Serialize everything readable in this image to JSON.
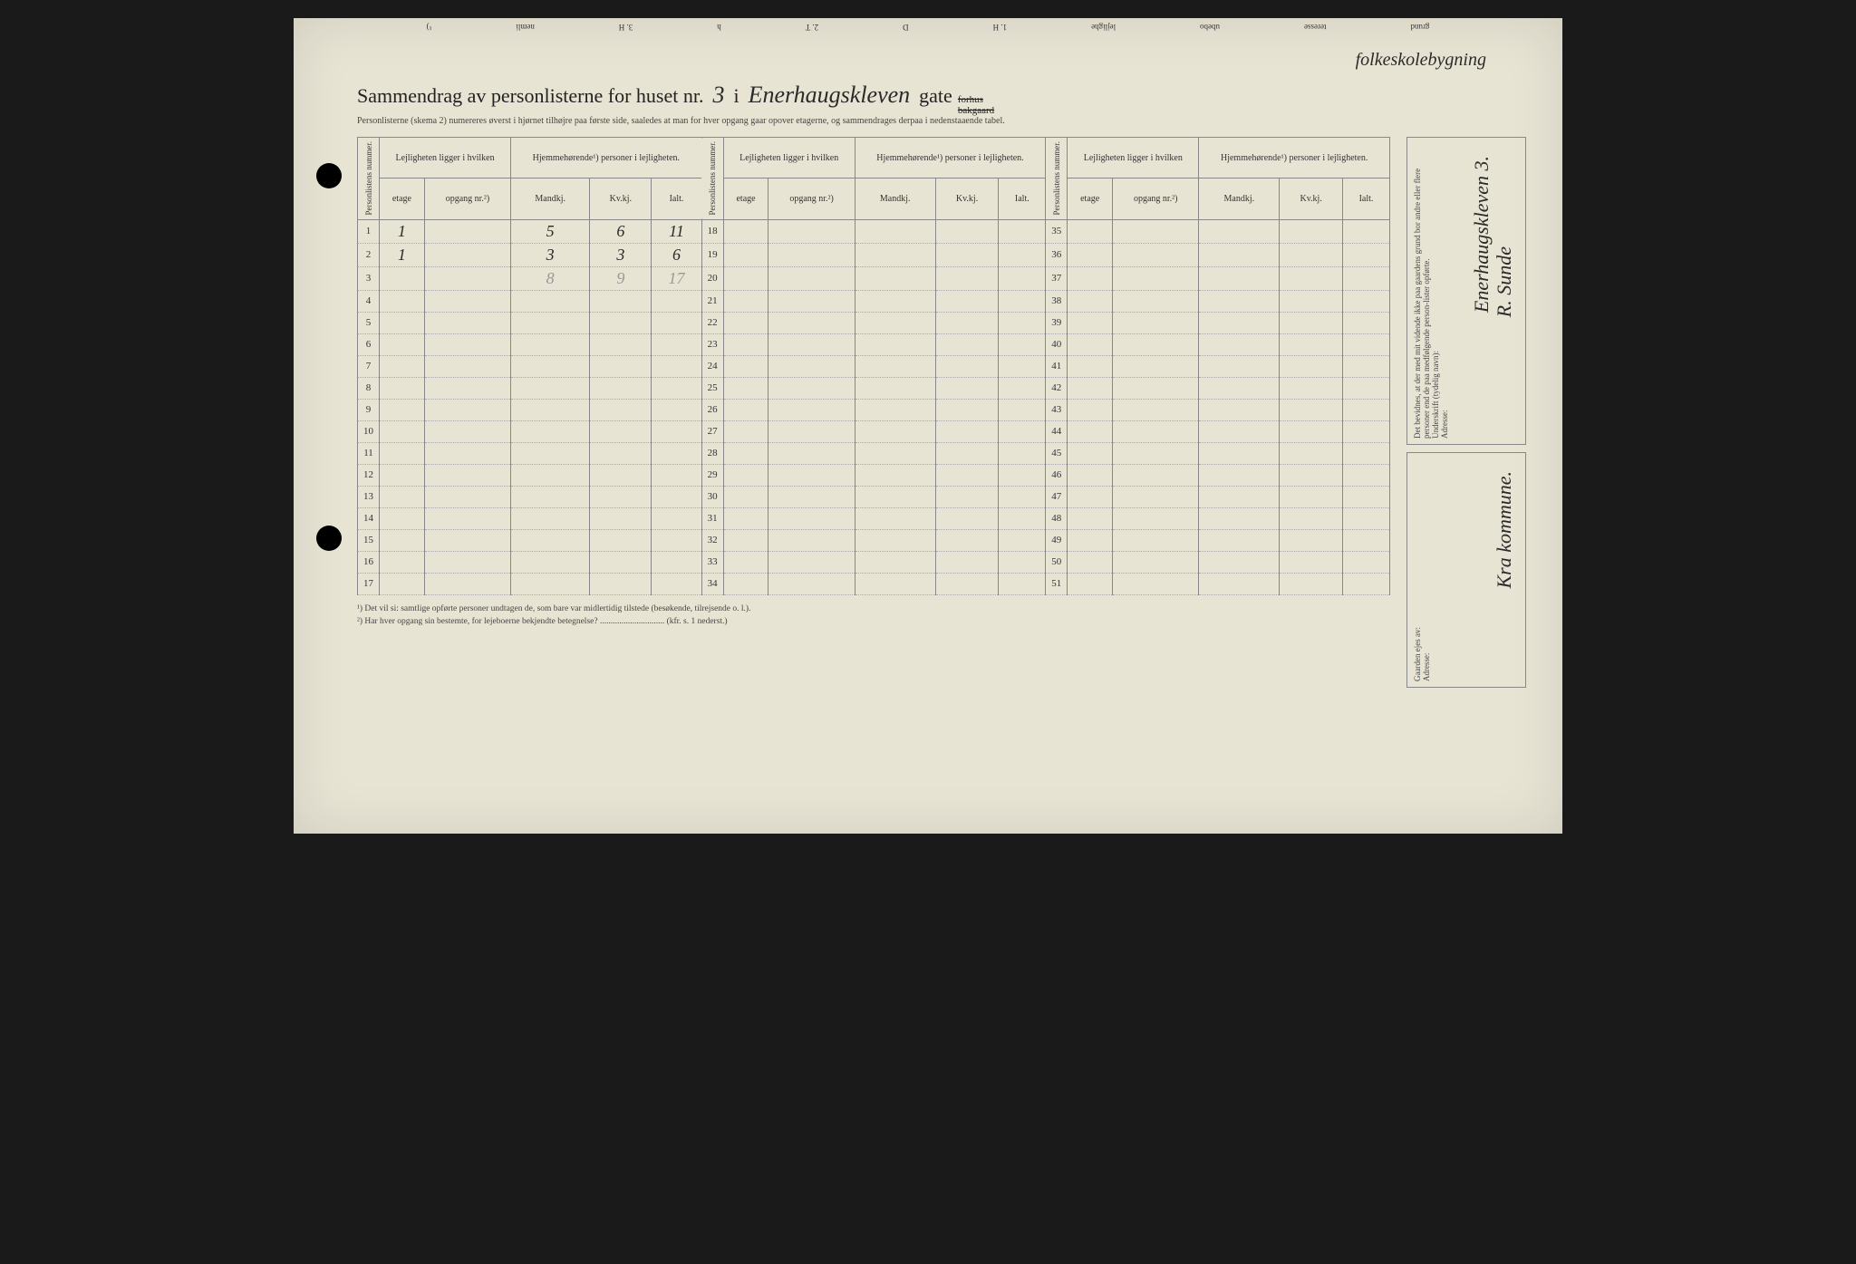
{
  "topFragments": [
    "grund",
    "teresse",
    "ubebo",
    "lejlighe",
    "1. H",
    "D",
    "2. T",
    "h",
    "3. H",
    "nemli",
    "¹)"
  ],
  "annotation": "folkeskolebygning",
  "title": {
    "part1": "Sammendrag av personlisterne for huset nr.",
    "houseNumber": "3",
    "part2": "i",
    "street": "Enerhaugskleven",
    "part3": "gate",
    "strike1": "forhus",
    "strike2": "bakgaard"
  },
  "subtitle": "Personlisterne (skema 2) numereres øverst i hjørnet tilhøjre paa første side, saaledes at man for hver opgang gaar opover etagerne, og sammendrages derpaa i nedenstaaende tabel.",
  "headers": {
    "personlist": "Personlistens nummer.",
    "ligger": "Lejligheten ligger i hvilken",
    "hjemme": "Hjemmehørende¹) personer i lejligheten.",
    "etage": "etage",
    "opgang": "opgang nr.²)",
    "mandkj": "Mandkj.",
    "kvkj": "Kv.kj.",
    "ialt": "Ialt."
  },
  "rows": [
    {
      "n": "1",
      "etage": "1",
      "opgang": "",
      "m": "5",
      "k": "6",
      "i": "11"
    },
    {
      "n": "2",
      "etage": "1",
      "opgang": "",
      "m": "3",
      "k": "3",
      "i": "6"
    },
    {
      "n": "3",
      "etage": "",
      "opgang": "",
      "m": "8",
      "k": "9",
      "i": "17",
      "faded": true
    },
    {
      "n": "4"
    },
    {
      "n": "5"
    },
    {
      "n": "6"
    },
    {
      "n": "7"
    },
    {
      "n": "8"
    },
    {
      "n": "9"
    },
    {
      "n": "10"
    },
    {
      "n": "11"
    },
    {
      "n": "12"
    },
    {
      "n": "13"
    },
    {
      "n": "14"
    },
    {
      "n": "15"
    },
    {
      "n": "16"
    },
    {
      "n": "17"
    }
  ],
  "rowsB": [
    "18",
    "19",
    "20",
    "21",
    "22",
    "23",
    "24",
    "25",
    "26",
    "27",
    "28",
    "29",
    "30",
    "31",
    "32",
    "33",
    "34"
  ],
  "rowsC": [
    "35",
    "36",
    "37",
    "38",
    "39",
    "40",
    "41",
    "42",
    "43",
    "44",
    "45",
    "46",
    "47",
    "48",
    "49",
    "50",
    "51"
  ],
  "footnote1": "¹) Det vil si: samtlige opførte personer undtagen de, som bare var midlertidig tilstede (besøkende, tilrejsende o. l.).",
  "footnote2": "²) Har hver opgang sin bestemte, for lejeboerne bekjendte betegnelse?",
  "footnote2suffix": "(kfr. s. 1 nederst.)",
  "sidebar": {
    "attest": "Det bevidnes, at der med mit vidende ikke paa gaardens grund bor andre eller flere personer end de paa medfølgende person-lister opførte.",
    "underskrift": "Underskrift (tydelig navn):",
    "signature": "R. Sunde",
    "adresse": "Adresse:",
    "adresseVal": "Enerhaugskleven 3.",
    "owner": "Gaarden ejes av:",
    "ownerVal": "Kra kommune.",
    "adresse2": "Adresse:"
  }
}
